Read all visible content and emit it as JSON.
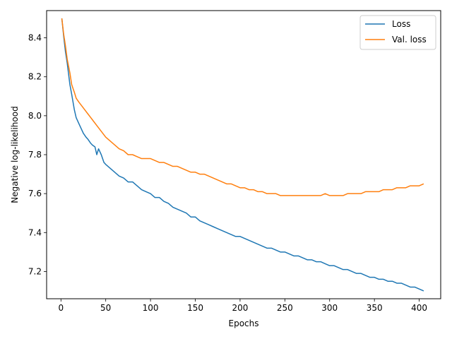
{
  "chart_data": {
    "type": "line",
    "title": "",
    "xlabel": "Epochs",
    "ylabel": "Negative log-likelihood",
    "xlim": [
      -16,
      424
    ],
    "ylim": [
      7.06,
      8.54
    ],
    "xticks": [
      0,
      50,
      100,
      150,
      200,
      250,
      300,
      350,
      400
    ],
    "yticks": [
      7.2,
      7.4,
      7.6,
      7.8,
      8.0,
      8.2,
      8.4
    ],
    "grid": false,
    "legend_position": "top-right",
    "series": [
      {
        "name": "Loss",
        "color": "#1f77b4",
        "x": [
          1,
          3,
          5,
          7,
          10,
          12,
          15,
          17,
          20,
          23,
          25,
          28,
          30,
          33,
          35,
          38,
          40,
          42,
          45,
          48,
          50,
          55,
          60,
          65,
          70,
          75,
          80,
          85,
          90,
          95,
          100,
          105,
          110,
          115,
          120,
          125,
          130,
          135,
          140,
          145,
          150,
          155,
          160,
          165,
          170,
          175,
          180,
          185,
          190,
          195,
          200,
          205,
          210,
          215,
          220,
          225,
          230,
          235,
          240,
          245,
          250,
          255,
          260,
          265,
          270,
          275,
          280,
          285,
          290,
          295,
          300,
          305,
          310,
          315,
          320,
          325,
          330,
          335,
          340,
          345,
          350,
          355,
          360,
          365,
          370,
          375,
          380,
          385,
          390,
          395,
          400,
          405
        ],
        "values": [
          8.5,
          8.41,
          8.33,
          8.27,
          8.16,
          8.11,
          8.03,
          7.99,
          7.96,
          7.93,
          7.91,
          7.89,
          7.88,
          7.86,
          7.85,
          7.84,
          7.8,
          7.83,
          7.8,
          7.76,
          7.75,
          7.73,
          7.71,
          7.69,
          7.68,
          7.66,
          7.66,
          7.64,
          7.62,
          7.61,
          7.6,
          7.58,
          7.58,
          7.56,
          7.55,
          7.53,
          7.52,
          7.51,
          7.5,
          7.48,
          7.48,
          7.46,
          7.45,
          7.44,
          7.43,
          7.42,
          7.41,
          7.4,
          7.39,
          7.38,
          7.38,
          7.37,
          7.36,
          7.35,
          7.34,
          7.33,
          7.32,
          7.32,
          7.31,
          7.3,
          7.3,
          7.29,
          7.28,
          7.28,
          7.27,
          7.26,
          7.26,
          7.25,
          7.25,
          7.24,
          7.23,
          7.23,
          7.22,
          7.21,
          7.21,
          7.2,
          7.19,
          7.19,
          7.18,
          7.17,
          7.17,
          7.16,
          7.16,
          7.15,
          7.15,
          7.14,
          7.14,
          7.13,
          7.12,
          7.12,
          7.11,
          7.1
        ]
      },
      {
        "name": "Val. loss",
        "color": "#ff7f0e",
        "x": [
          1,
          3,
          5,
          7,
          10,
          12,
          15,
          17,
          20,
          25,
          30,
          35,
          40,
          45,
          50,
          55,
          60,
          65,
          70,
          75,
          80,
          85,
          90,
          95,
          100,
          105,
          110,
          115,
          120,
          125,
          130,
          135,
          140,
          145,
          150,
          155,
          160,
          165,
          170,
          175,
          180,
          185,
          190,
          195,
          200,
          205,
          210,
          215,
          220,
          225,
          230,
          235,
          240,
          245,
          250,
          255,
          260,
          265,
          270,
          275,
          280,
          285,
          290,
          295,
          300,
          305,
          310,
          315,
          320,
          325,
          330,
          335,
          340,
          345,
          350,
          355,
          360,
          365,
          370,
          375,
          380,
          385,
          390,
          395,
          400,
          405
        ],
        "values": [
          8.5,
          8.42,
          8.36,
          8.29,
          8.22,
          8.16,
          8.12,
          8.09,
          8.07,
          8.04,
          8.01,
          7.98,
          7.95,
          7.92,
          7.89,
          7.87,
          7.85,
          7.83,
          7.82,
          7.8,
          7.8,
          7.79,
          7.78,
          7.78,
          7.78,
          7.77,
          7.76,
          7.76,
          7.75,
          7.74,
          7.74,
          7.73,
          7.72,
          7.71,
          7.71,
          7.7,
          7.7,
          7.69,
          7.68,
          7.67,
          7.66,
          7.65,
          7.65,
          7.64,
          7.63,
          7.63,
          7.62,
          7.62,
          7.61,
          7.61,
          7.6,
          7.6,
          7.6,
          7.59,
          7.59,
          7.59,
          7.59,
          7.59,
          7.59,
          7.59,
          7.59,
          7.59,
          7.59,
          7.6,
          7.59,
          7.59,
          7.59,
          7.59,
          7.6,
          7.6,
          7.6,
          7.6,
          7.61,
          7.61,
          7.61,
          7.61,
          7.62,
          7.62,
          7.62,
          7.63,
          7.63,
          7.63,
          7.64,
          7.64,
          7.64,
          7.65
        ]
      }
    ]
  }
}
